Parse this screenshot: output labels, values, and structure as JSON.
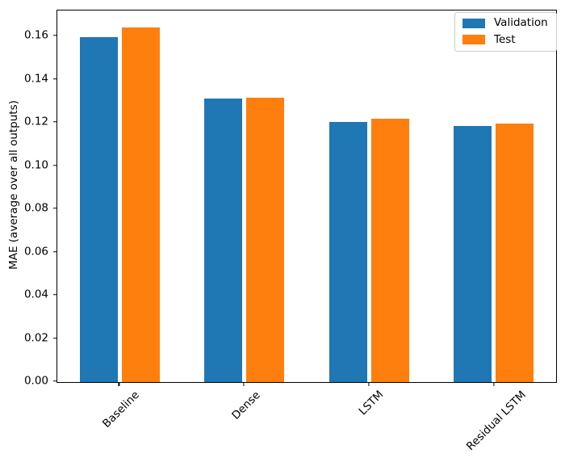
{
  "chart_data": {
    "type": "bar",
    "title": "",
    "xlabel": "",
    "ylabel": "MAE (average over all outputs)",
    "categories": [
      "Baseline",
      "Dense",
      "LSTM",
      "Residual LSTM"
    ],
    "series": [
      {
        "name": "Validation",
        "color": "#1f77b4",
        "values": [
          0.1595,
          0.1313,
          0.1205,
          0.1185
        ]
      },
      {
        "name": "Test",
        "color": "#ff7f0e",
        "values": [
          0.1643,
          0.1316,
          0.1218,
          0.1196
        ]
      }
    ],
    "ylim": [
      0,
      0.172
    ],
    "yticks": [
      0,
      0.02,
      0.04,
      0.06,
      0.08,
      0.1,
      0.12,
      0.14,
      0.16
    ],
    "yticklabels": [
      "0.00",
      "0.02",
      "0.04",
      "0.06",
      "0.08",
      "0.10",
      "0.12",
      "0.14",
      "0.16"
    ],
    "xtick_rotation": 45,
    "grid": false,
    "legend_position": "upper right"
  }
}
